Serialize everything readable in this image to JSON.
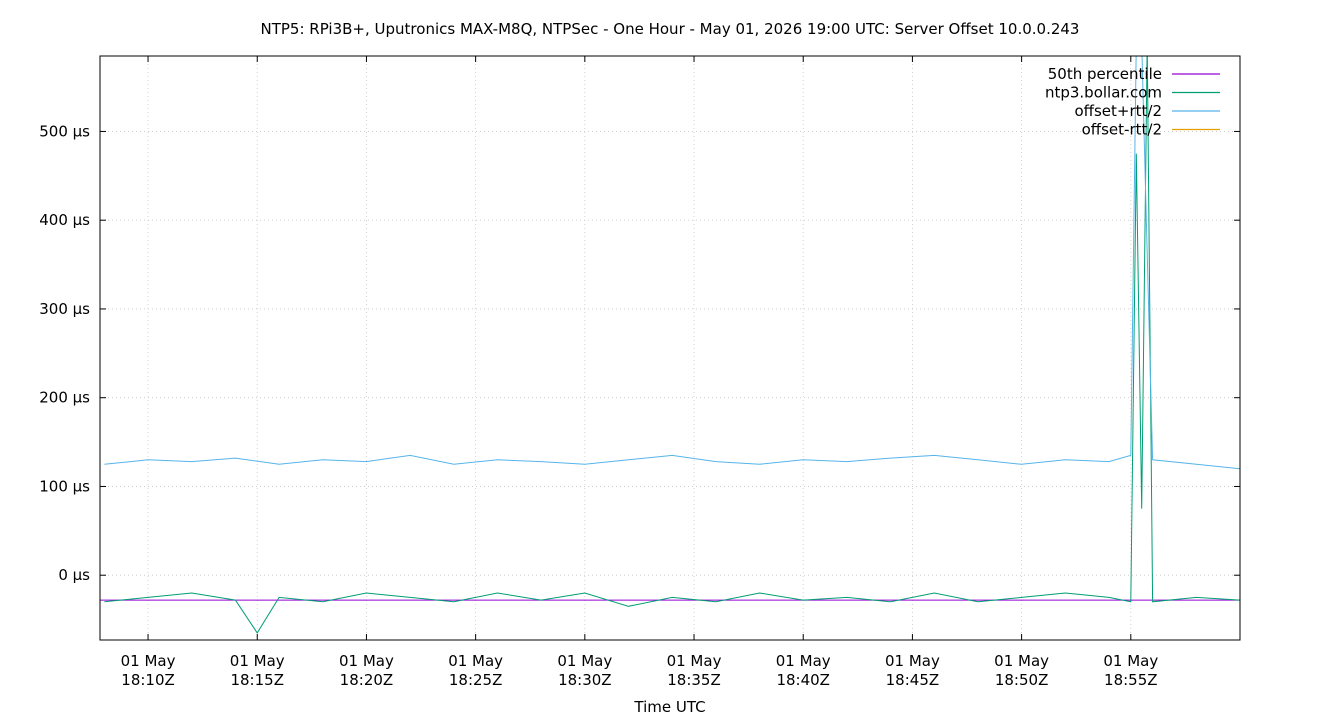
{
  "chart_data": {
    "type": "line",
    "title": "NTP5: RPi3B+, Uputronics MAX-M8Q, NTPSec - One Hour - May 01, 2026 19:00 UTC: Server Offset 10.0.0.243",
    "xlabel": "Time UTC",
    "ylabel": "",
    "x_start": "18:07:48",
    "x_end": "19:00:00",
    "ylim": [
      -73,
      585
    ],
    "y_unit": "µs",
    "grid": true,
    "legend_position": "top-right",
    "y_ticks": [
      {
        "value": 0,
        "label": "0 µs"
      },
      {
        "value": 100,
        "label": "100 µs"
      },
      {
        "value": 200,
        "label": "200 µs"
      },
      {
        "value": 300,
        "label": "300 µs"
      },
      {
        "value": 400,
        "label": "400 µs"
      },
      {
        "value": 500,
        "label": "500 µs"
      }
    ],
    "x_ticks": [
      {
        "time": "18:10",
        "line1": "01 May",
        "line2": "18:10Z"
      },
      {
        "time": "18:15",
        "line1": "01 May",
        "line2": "18:15Z"
      },
      {
        "time": "18:20",
        "line1": "01 May",
        "line2": "18:20Z"
      },
      {
        "time": "18:25",
        "line1": "01 May",
        "line2": "18:25Z"
      },
      {
        "time": "18:30",
        "line1": "01 May",
        "line2": "18:30Z"
      },
      {
        "time": "18:35",
        "line1": "01 May",
        "line2": "18:35Z"
      },
      {
        "time": "18:40",
        "line1": "01 May",
        "line2": "18:40Z"
      },
      {
        "time": "18:45",
        "line1": "01 May",
        "line2": "18:45Z"
      },
      {
        "time": "18:50",
        "line1": "01 May",
        "line2": "18:50Z"
      },
      {
        "time": "18:55",
        "line1": "01 May",
        "line2": "18:55Z"
      }
    ],
    "series": [
      {
        "name": "50th percentile",
        "color": "#9400d3",
        "x": [
          "18:07:48",
          "19:00:00"
        ],
        "values": [
          -28,
          -28
        ]
      },
      {
        "name": "ntp3.bollar.com",
        "color": "#009e73",
        "x": [
          "18:08:00",
          "18:10:00",
          "18:12:00",
          "18:14:00",
          "18:15:00",
          "18:16:00",
          "18:18:00",
          "18:20:00",
          "18:22:00",
          "18:24:00",
          "18:26:00",
          "18:28:00",
          "18:30:00",
          "18:32:00",
          "18:34:00",
          "18:36:00",
          "18:38:00",
          "18:40:00",
          "18:42:00",
          "18:44:00",
          "18:46:00",
          "18:48:00",
          "18:50:00",
          "18:52:00",
          "18:54:00",
          "18:55:00",
          "18:55:15",
          "18:55:30",
          "18:55:45",
          "18:56:00",
          "18:58:00",
          "19:00:00"
        ],
        "values": [
          -30,
          -25,
          -20,
          -28,
          -65,
          -25,
          -30,
          -20,
          -25,
          -30,
          -20,
          -28,
          -20,
          -35,
          -25,
          -30,
          -20,
          -28,
          -25,
          -30,
          -20,
          -30,
          -25,
          -20,
          -25,
          -30,
          475,
          75,
          600,
          -30,
          -25,
          -28
        ]
      },
      {
        "name": "offset+rtt/2",
        "color": "#56b4e9",
        "x": [
          "18:08:00",
          "18:10:00",
          "18:12:00",
          "18:14:00",
          "18:16:00",
          "18:18:00",
          "18:20:00",
          "18:22:00",
          "18:24:00",
          "18:26:00",
          "18:28:00",
          "18:30:00",
          "18:32:00",
          "18:34:00",
          "18:36:00",
          "18:38:00",
          "18:40:00",
          "18:42:00",
          "18:44:00",
          "18:46:00",
          "18:48:00",
          "18:50:00",
          "18:52:00",
          "18:54:00",
          "18:55:00",
          "18:55:15",
          "18:55:30",
          "18:56:00",
          "18:58:00",
          "19:00:00"
        ],
        "values": [
          125,
          130,
          128,
          132,
          125,
          130,
          128,
          135,
          125,
          130,
          128,
          125,
          130,
          135,
          128,
          125,
          130,
          128,
          132,
          135,
          130,
          125,
          130,
          128,
          135,
          600,
          600,
          130,
          125,
          120
        ]
      },
      {
        "name": "offset-rtt/2",
        "color": "#e69f00",
        "x": [],
        "values": []
      }
    ]
  }
}
